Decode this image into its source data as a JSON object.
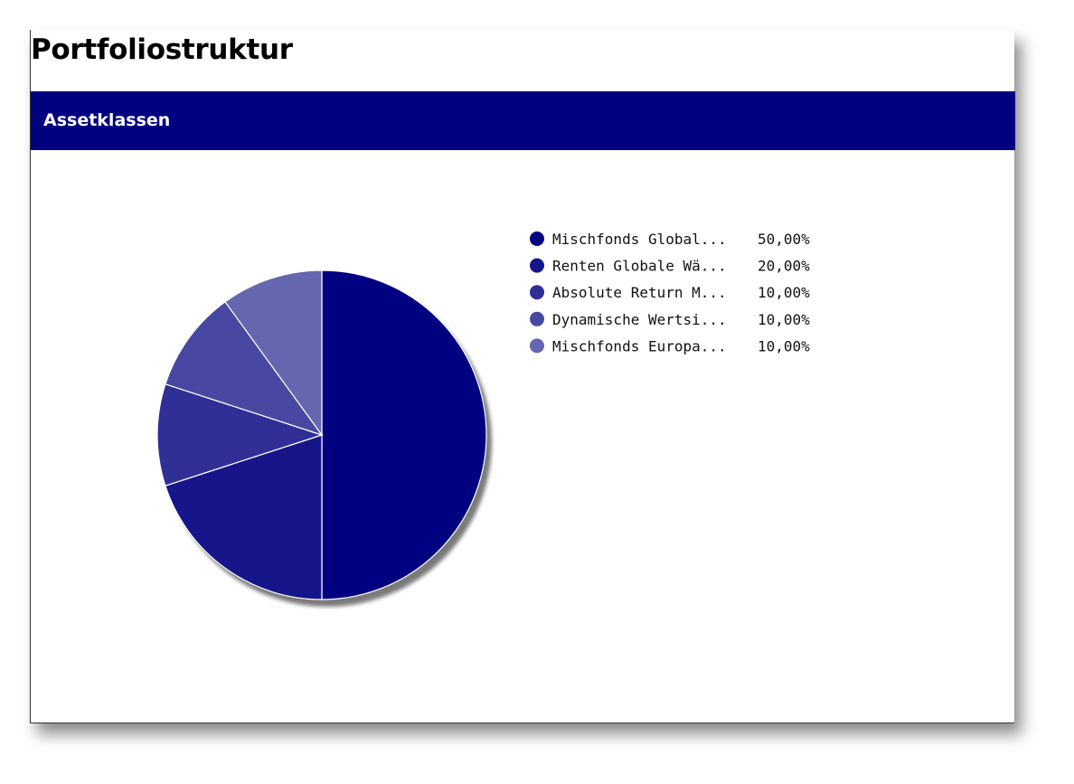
{
  "page": {
    "title": "Portfoliostruktur"
  },
  "section": {
    "title": "Assetklassen"
  },
  "chart_data": {
    "type": "pie",
    "title": "",
    "categories": [
      "Mischfonds Global...",
      "Renten Globale Wä...",
      "Absolute Return M...",
      "Dynamische Wertsi...",
      "Mischfonds Europa..."
    ],
    "values": [
      50,
      20,
      10,
      10,
      10
    ],
    "value_labels": [
      "50,00%",
      "20,00%",
      "10,00%",
      "10,00%",
      "10,00%"
    ],
    "colors": [
      "#000080",
      "#16168a",
      "#2f2f96",
      "#4848a3",
      "#6565b0"
    ],
    "start_angle": "12 o'clock",
    "direction": "clockwise",
    "legend_position": "right",
    "shadow": true
  }
}
